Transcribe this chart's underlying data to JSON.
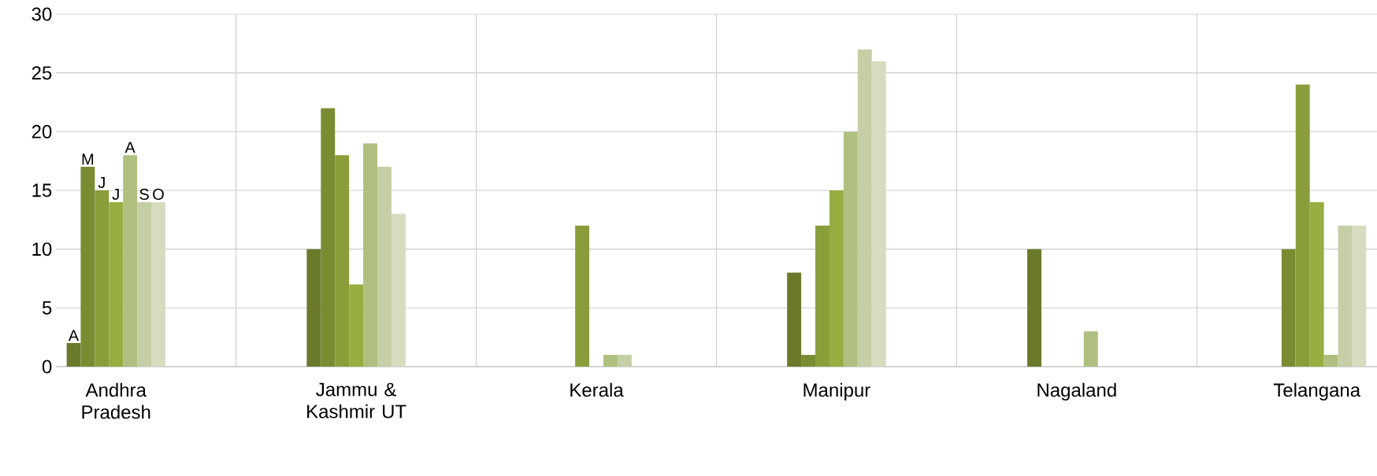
{
  "chart_data": {
    "type": "bar",
    "categories": [
      "Andhra Pradesh",
      "Jammu & Kashmir UT",
      "Kerala",
      "Manipur",
      "Nagaland",
      "Telangana"
    ],
    "series": [
      {
        "name": "A",
        "color": "#6a7a2b",
        "values": [
          2,
          10,
          0,
          8,
          10,
          0
        ]
      },
      {
        "name": "M",
        "color": "#7a8c32",
        "values": [
          17,
          22,
          0,
          1,
          0,
          10
        ]
      },
      {
        "name": "J",
        "color": "#899e3a",
        "values": [
          15,
          18,
          12,
          12,
          0,
          24
        ]
      },
      {
        "name": "J",
        "color": "#96ad40",
        "values": [
          14,
          7,
          0,
          15,
          0,
          14
        ]
      },
      {
        "name": "A",
        "color": "#afbf80",
        "values": [
          18,
          19,
          1,
          20,
          3,
          1
        ]
      },
      {
        "name": "S",
        "color": "#c4cfa6",
        "values": [
          14,
          17,
          1,
          27,
          0,
          12
        ]
      },
      {
        "name": "O",
        "color": "#d6dcc0",
        "values": [
          14,
          13,
          0,
          26,
          0,
          12
        ]
      }
    ],
    "ylim": [
      0,
      30
    ],
    "yticks": [
      0,
      5,
      10,
      15,
      20,
      25,
      30
    ],
    "grid": true
  }
}
